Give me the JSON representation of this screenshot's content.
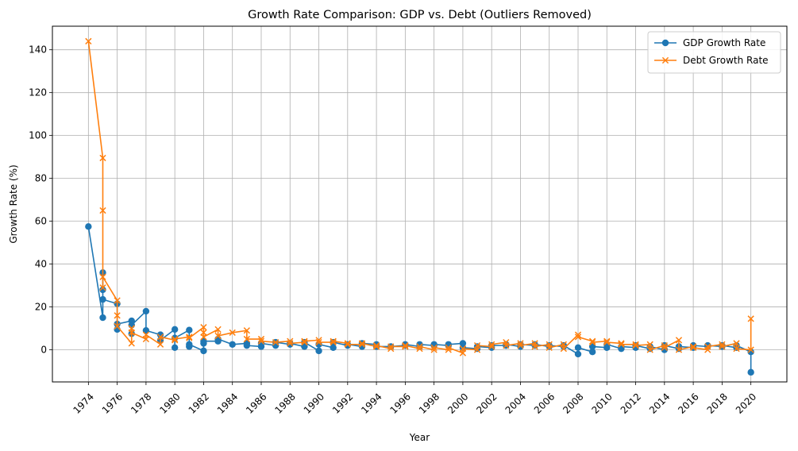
{
  "chart_data": {
    "type": "line",
    "title": "Growth Rate Comparison: GDP vs. Debt (Outliers Removed)",
    "xlabel": "Year",
    "ylabel": "Growth Rate (%)",
    "xlim": [
      1971.5,
      2022.5
    ],
    "ylim": [
      -15,
      151
    ],
    "xticks": [
      1974,
      1976,
      1978,
      1980,
      1982,
      1984,
      1986,
      1988,
      1990,
      1992,
      1994,
      1996,
      1998,
      2000,
      2002,
      2004,
      2006,
      2008,
      2010,
      2012,
      2014,
      2016,
      2018,
      2020
    ],
    "yticks": [
      0,
      20,
      40,
      60,
      80,
      100,
      120,
      140
    ],
    "grid": true,
    "legend_position": "top-right",
    "series": [
      {
        "name": "GDP Growth Rate",
        "color": "#1f77b4",
        "marker": "circle",
        "points": [
          [
            1974,
            57.5
          ],
          [
            1975,
            15
          ],
          [
            1975,
            28
          ],
          [
            1975,
            36
          ],
          [
            1975,
            23.5
          ],
          [
            1976,
            21.5
          ],
          [
            1976,
            9.5
          ],
          [
            1976,
            12
          ],
          [
            1977,
            13.5
          ],
          [
            1977,
            7.5
          ],
          [
            1977,
            11.5
          ],
          [
            1978,
            18
          ],
          [
            1978,
            9
          ],
          [
            1979,
            7
          ],
          [
            1979,
            4.5
          ],
          [
            1980,
            9.5
          ],
          [
            1980,
            1
          ],
          [
            1980,
            5.5
          ],
          [
            1981,
            9.2
          ],
          [
            1981,
            1.5
          ],
          [
            1981,
            2.5
          ],
          [
            1982,
            -0.5
          ],
          [
            1982,
            3
          ],
          [
            1982,
            4
          ],
          [
            1983,
            4
          ],
          [
            1983,
            5
          ],
          [
            1984,
            2.5
          ],
          [
            1985,
            3
          ],
          [
            1985,
            2
          ],
          [
            1986,
            1.5
          ],
          [
            1986,
            3
          ],
          [
            1987,
            2
          ],
          [
            1987,
            3.5
          ],
          [
            1988,
            2.5
          ],
          [
            1988,
            3
          ],
          [
            1989,
            1.5
          ],
          [
            1989,
            3.5
          ],
          [
            1990,
            -0.5
          ],
          [
            1990,
            2.5
          ],
          [
            1991,
            1
          ],
          [
            1991,
            3.5
          ],
          [
            1992,
            2
          ],
          [
            1992,
            2.5
          ],
          [
            1993,
            1.5
          ],
          [
            1993,
            3
          ],
          [
            1994,
            2.5
          ],
          [
            1994,
            1.5
          ],
          [
            1995,
            1.5
          ],
          [
            1996,
            2
          ],
          [
            1996,
            2.5
          ],
          [
            1997,
            1.5
          ],
          [
            1997,
            2.5
          ],
          [
            1998,
            2
          ],
          [
            1998,
            2.5
          ],
          [
            1999,
            2
          ],
          [
            1999,
            2.5
          ],
          [
            2000,
            3
          ],
          [
            2000,
            1
          ],
          [
            2001,
            0.5
          ],
          [
            2001,
            1.5
          ],
          [
            2002,
            1
          ],
          [
            2002,
            2
          ],
          [
            2003,
            2
          ],
          [
            2003,
            2.5
          ],
          [
            2004,
            1.5
          ],
          [
            2004,
            2.5
          ],
          [
            2005,
            2
          ],
          [
            2005,
            2.5
          ],
          [
            2006,
            1.5
          ],
          [
            2006,
            2
          ],
          [
            2007,
            1.5
          ],
          [
            2007,
            2
          ],
          [
            2008,
            -2
          ],
          [
            2008,
            1
          ],
          [
            2009,
            -1
          ],
          [
            2009,
            1.5
          ],
          [
            2010,
            1
          ],
          [
            2010,
            2.5
          ],
          [
            2011,
            0.5
          ],
          [
            2011,
            1.5
          ],
          [
            2012,
            1
          ],
          [
            2012,
            2
          ],
          [
            2013,
            0.5
          ],
          [
            2013,
            1.5
          ],
          [
            2014,
            0
          ],
          [
            2014,
            2
          ],
          [
            2015,
            0.5
          ],
          [
            2015,
            1.5
          ],
          [
            2016,
            1
          ],
          [
            2016,
            2
          ],
          [
            2017,
            1.5
          ],
          [
            2017,
            2
          ],
          [
            2018,
            1.5
          ],
          [
            2018,
            2
          ],
          [
            2019,
            1
          ],
          [
            2019,
            2
          ],
          [
            2020,
            -1
          ],
          [
            2020,
            -10.5
          ]
        ]
      },
      {
        "name": "Debt Growth Rate",
        "color": "#ff7f0e",
        "marker": "x",
        "points": [
          [
            1974,
            144
          ],
          [
            1975,
            89.5
          ],
          [
            1975,
            65
          ],
          [
            1975,
            29
          ],
          [
            1975,
            34
          ],
          [
            1976,
            23
          ],
          [
            1976,
            16
          ],
          [
            1976,
            11
          ],
          [
            1977,
            3
          ],
          [
            1977,
            10
          ],
          [
            1977,
            8
          ],
          [
            1978,
            5
          ],
          [
            1978,
            7
          ],
          [
            1979,
            2.5
          ],
          [
            1979,
            6
          ],
          [
            1980,
            4.5
          ],
          [
            1980,
            5
          ],
          [
            1981,
            6
          ],
          [
            1981,
            5.5
          ],
          [
            1982,
            10.5
          ],
          [
            1982,
            8
          ],
          [
            1982,
            6
          ],
          [
            1983,
            9.5
          ],
          [
            1983,
            6.5
          ],
          [
            1984,
            8
          ],
          [
            1985,
            9
          ],
          [
            1985,
            5
          ],
          [
            1986,
            5
          ],
          [
            1986,
            4
          ],
          [
            1987,
            3.5
          ],
          [
            1988,
            4
          ],
          [
            1988,
            3
          ],
          [
            1989,
            3.5
          ],
          [
            1989,
            4
          ],
          [
            1990,
            4.5
          ],
          [
            1990,
            3.5
          ],
          [
            1991,
            3.5
          ],
          [
            1991,
            4
          ],
          [
            1992,
            3
          ],
          [
            1992,
            2.5
          ],
          [
            1993,
            2.5
          ],
          [
            1993,
            3
          ],
          [
            1994,
            1.5
          ],
          [
            1994,
            2
          ],
          [
            1995,
            0.5
          ],
          [
            1995,
            1.5
          ],
          [
            1996,
            1.5
          ],
          [
            1996,
            2
          ],
          [
            1997,
            0.5
          ],
          [
            1997,
            1.5
          ],
          [
            1998,
            0
          ],
          [
            1998,
            1
          ],
          [
            1999,
            0
          ],
          [
            1999,
            1
          ],
          [
            2000,
            -1.5
          ],
          [
            2000,
            0.5
          ],
          [
            2001,
            0
          ],
          [
            2001,
            2
          ],
          [
            2002,
            1.5
          ],
          [
            2002,
            2.5
          ],
          [
            2003,
            3.5
          ],
          [
            2003,
            2
          ],
          [
            2004,
            3
          ],
          [
            2004,
            2
          ],
          [
            2005,
            3
          ],
          [
            2005,
            1.5
          ],
          [
            2006,
            2.5
          ],
          [
            2006,
            1
          ],
          [
            2007,
            2.5
          ],
          [
            2007,
            0.5
          ],
          [
            2008,
            7
          ],
          [
            2008,
            6
          ],
          [
            2009,
            4
          ],
          [
            2009,
            3.5
          ],
          [
            2010,
            4
          ],
          [
            2010,
            3.5
          ],
          [
            2011,
            3
          ],
          [
            2011,
            2.5
          ],
          [
            2012,
            2.5
          ],
          [
            2012,
            2
          ],
          [
            2013,
            2.5
          ],
          [
            2013,
            0
          ],
          [
            2014,
            2
          ],
          [
            2014,
            1
          ],
          [
            2015,
            4.5
          ],
          [
            2015,
            0
          ],
          [
            2016,
            1.5
          ],
          [
            2016,
            1
          ],
          [
            2017,
            0
          ],
          [
            2017,
            1.5
          ],
          [
            2018,
            2.5
          ],
          [
            2018,
            1.5
          ],
          [
            2019,
            3
          ],
          [
            2019,
            0.5
          ],
          [
            2020,
            0
          ],
          [
            2020,
            14.5
          ]
        ]
      }
    ]
  }
}
